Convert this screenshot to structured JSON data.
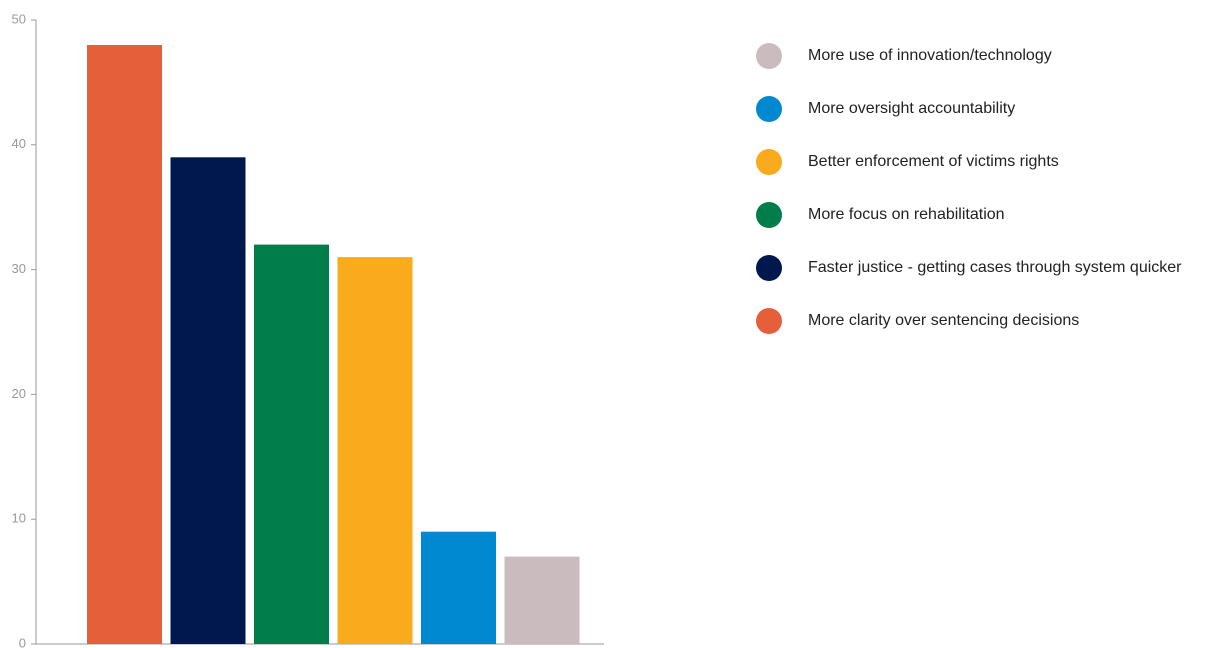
{
  "chart_data": {
    "type": "bar",
    "title": "",
    "xlabel": "",
    "ylabel": "",
    "ylim": [
      0,
      50
    ],
    "yticks": [
      0,
      10,
      20,
      30,
      40,
      50
    ],
    "grid": false,
    "legend_position": "right",
    "bars": [
      {
        "label": "More clarity over sentencing decisions",
        "value": 48,
        "color": "#E5603A"
      },
      {
        "label": "Faster justice - getting cases through system quicker",
        "value": 39,
        "color": "#00184D"
      },
      {
        "label": "More focus on rehabilitation",
        "value": 32,
        "color": "#007D4B"
      },
      {
        "label": "Better enforcement of victims rights",
        "value": 31,
        "color": "#F9AB1D"
      },
      {
        "label": "More oversight accountability",
        "value": 9,
        "color": "#0089D0"
      },
      {
        "label": "More use of innovation/technology",
        "value": 7,
        "color": "#CABCBE"
      }
    ],
    "legend": [
      {
        "label": "More use of innovation/technology",
        "color": "#CABCBE"
      },
      {
        "label": "More oversight accountability",
        "color": "#0089D0"
      },
      {
        "label": "Better enforcement of victims rights",
        "color": "#F9AB1D"
      },
      {
        "label": "More focus on rehabilitation",
        "color": "#007D4B"
      },
      {
        "label": "Faster justice - getting cases through system quicker",
        "color": "#00184D"
      },
      {
        "label": "More clarity over sentencing decisions",
        "color": "#E5603A"
      }
    ]
  },
  "colors": {
    "axis": "#999999",
    "tick_text": "#999999",
    "legend_text": "#222222"
  }
}
